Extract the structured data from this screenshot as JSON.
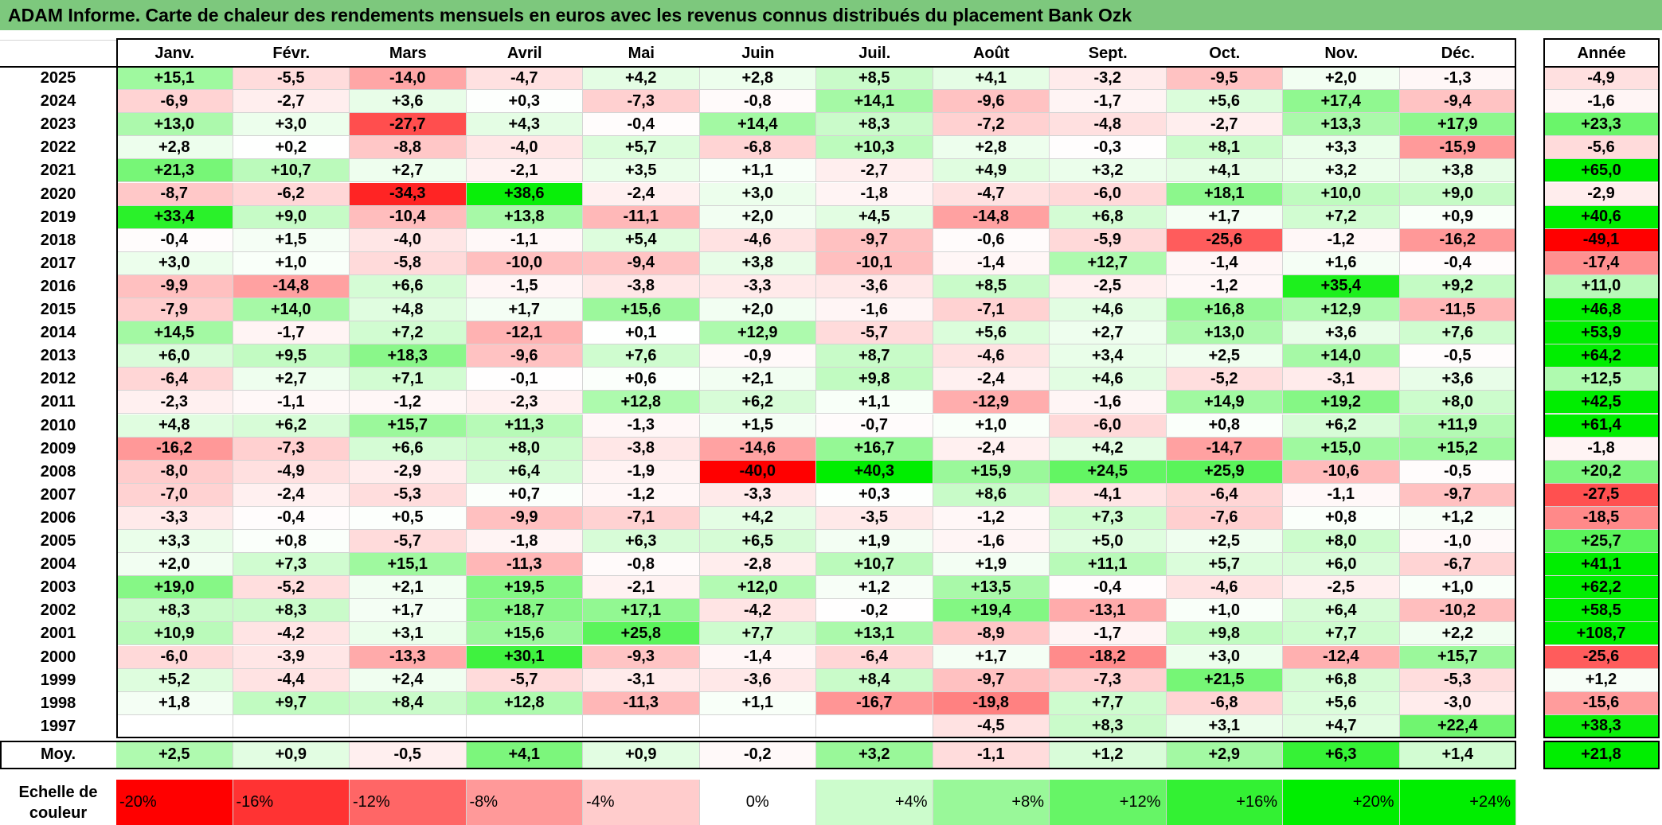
{
  "title": "ADAM Informe. Carte de chaleur des rendements mensuels en euros avec les revenus connus distribués du placement Bank Ozk",
  "chart_data": {
    "type": "heatmap",
    "title": "ADAM Informe. Carte de chaleur des rendements mensuels en euros avec les revenus connus distribués du placement Bank Ozk",
    "months": [
      "Janv.",
      "Févr.",
      "Mars",
      "Avril",
      "Mai",
      "Juin",
      "Juil.",
      "Août",
      "Sept.",
      "Oct.",
      "Nov.",
      "Déc."
    ],
    "annual_header": "Année",
    "rows": [
      {
        "year": "2025",
        "values": [
          "+15,1",
          "-5,5",
          "-14,0",
          "-4,7",
          "+4,2",
          "+2,8",
          "+8,5",
          "+4,1",
          "-3,2",
          "-9,5",
          "+2,0",
          "-1,3"
        ],
        "annual": "-4,9"
      },
      {
        "year": "2024",
        "values": [
          "-6,9",
          "-2,7",
          "+3,6",
          "+0,3",
          "-7,3",
          "-0,8",
          "+14,1",
          "-9,6",
          "-1,7",
          "+5,6",
          "+17,4",
          "-9,4"
        ],
        "annual": "-1,6"
      },
      {
        "year": "2023",
        "values": [
          "+13,0",
          "+3,0",
          "-27,7",
          "+4,3",
          "-0,4",
          "+14,4",
          "+8,3",
          "-7,2",
          "-4,8",
          "-2,7",
          "+13,3",
          "+17,9"
        ],
        "annual": "+23,3"
      },
      {
        "year": "2022",
        "values": [
          "+2,8",
          "+0,2",
          "-8,8",
          "-4,0",
          "+5,7",
          "-6,8",
          "+10,3",
          "+2,8",
          "-0,3",
          "+8,1",
          "+3,3",
          "-15,9"
        ],
        "annual": "-5,6"
      },
      {
        "year": "2021",
        "values": [
          "+21,3",
          "+10,7",
          "+2,7",
          "-2,1",
          "+3,5",
          "+1,1",
          "-2,7",
          "+4,9",
          "+3,2",
          "+4,1",
          "+3,2",
          "+3,8"
        ],
        "annual": "+65,0"
      },
      {
        "year": "2020",
        "values": [
          "-8,7",
          "-6,2",
          "-34,3",
          "+38,6",
          "-2,4",
          "+3,0",
          "-1,8",
          "-4,7",
          "-6,0",
          "+18,1",
          "+10,0",
          "+9,0"
        ],
        "annual": "-2,9"
      },
      {
        "year": "2019",
        "values": [
          "+33,4",
          "+9,0",
          "-10,4",
          "+13,8",
          "-11,1",
          "+2,0",
          "+4,5",
          "-14,8",
          "+6,8",
          "+1,7",
          "+7,2",
          "+0,9"
        ],
        "annual": "+40,6"
      },
      {
        "year": "2018",
        "values": [
          "-0,4",
          "+1,5",
          "-4,0",
          "-1,1",
          "+5,4",
          "-4,6",
          "-9,7",
          "-0,6",
          "-5,9",
          "-25,6",
          "-1,2",
          "-16,2"
        ],
        "annual": "-49,1"
      },
      {
        "year": "2017",
        "values": [
          "+3,0",
          "+1,0",
          "-5,8",
          "-10,0",
          "-9,4",
          "+3,8",
          "-10,1",
          "-1,4",
          "+12,7",
          "-1,4",
          "+1,6",
          "-0,4"
        ],
        "annual": "-17,4"
      },
      {
        "year": "2016",
        "values": [
          "-9,9",
          "-14,8",
          "+6,6",
          "-1,5",
          "-3,8",
          "-3,3",
          "-3,6",
          "+8,5",
          "-2,5",
          "-1,2",
          "+35,4",
          "+9,2"
        ],
        "annual": "+11,0"
      },
      {
        "year": "2015",
        "values": [
          "-7,9",
          "+14,0",
          "+4,8",
          "+1,7",
          "+15,6",
          "+2,0",
          "-1,6",
          "-7,1",
          "+4,6",
          "+16,8",
          "+12,9",
          "-11,5"
        ],
        "annual": "+46,8"
      },
      {
        "year": "2014",
        "values": [
          "+14,5",
          "-1,7",
          "+7,2",
          "-12,1",
          "+0,1",
          "+12,9",
          "-5,7",
          "+5,6",
          "+2,7",
          "+13,0",
          "+3,6",
          "+7,6"
        ],
        "annual": "+53,9"
      },
      {
        "year": "2013",
        "values": [
          "+6,0",
          "+9,5",
          "+18,3",
          "-9,6",
          "+7,6",
          "-0,9",
          "+8,7",
          "-4,6",
          "+3,4",
          "+2,5",
          "+14,0",
          "-0,5"
        ],
        "annual": "+64,2"
      },
      {
        "year": "2012",
        "values": [
          "-6,4",
          "+2,7",
          "+7,1",
          "-0,1",
          "+0,6",
          "+2,1",
          "+9,8",
          "-2,4",
          "+4,6",
          "-5,2",
          "-3,1",
          "+3,6"
        ],
        "annual": "+12,5"
      },
      {
        "year": "2011",
        "values": [
          "-2,3",
          "-1,1",
          "-1,2",
          "-2,3",
          "+12,8",
          "+6,2",
          "+1,1",
          "-12,9",
          "-1,6",
          "+14,9",
          "+19,2",
          "+8,0"
        ],
        "annual": "+42,5"
      },
      {
        "year": "2010",
        "values": [
          "+4,8",
          "+6,2",
          "+15,7",
          "+11,3",
          "-1,3",
          "+1,5",
          "-0,7",
          "+1,0",
          "-6,0",
          "+0,8",
          "+6,2",
          "+11,9"
        ],
        "annual": "+61,4"
      },
      {
        "year": "2009",
        "values": [
          "-16,2",
          "-7,3",
          "+6,6",
          "+8,0",
          "-3,8",
          "-14,6",
          "+16,7",
          "-2,4",
          "+4,2",
          "-14,7",
          "+15,0",
          "+15,2"
        ],
        "annual": "-1,8"
      },
      {
        "year": "2008",
        "values": [
          "-8,0",
          "-4,9",
          "-2,9",
          "+6,4",
          "-1,9",
          "-40,0",
          "+40,3",
          "+15,9",
          "+24,5",
          "+25,9",
          "-10,6",
          "-0,5"
        ],
        "annual": "+20,2"
      },
      {
        "year": "2007",
        "values": [
          "-7,0",
          "-2,4",
          "-5,3",
          "+0,7",
          "-1,2",
          "-3,3",
          "+0,3",
          "+8,6",
          "-4,1",
          "-6,4",
          "-1,1",
          "-9,7"
        ],
        "annual": "-27,5"
      },
      {
        "year": "2006",
        "values": [
          "-3,3",
          "-0,4",
          "+0,5",
          "-9,9",
          "-7,1",
          "+4,2",
          "-3,5",
          "-1,2",
          "+7,3",
          "-7,6",
          "+0,8",
          "+1,2"
        ],
        "annual": "-18,5"
      },
      {
        "year": "2005",
        "values": [
          "+3,3",
          "+0,8",
          "-5,7",
          "-1,8",
          "+6,3",
          "+6,5",
          "+1,9",
          "-1,6",
          "+5,0",
          "+2,5",
          "+8,0",
          "-1,0"
        ],
        "annual": "+25,7"
      },
      {
        "year": "2004",
        "values": [
          "+2,0",
          "+7,3",
          "+15,1",
          "-11,3",
          "-0,8",
          "-2,8",
          "+10,7",
          "+1,9",
          "+11,1",
          "+5,7",
          "+6,0",
          "-6,7"
        ],
        "annual": "+41,1"
      },
      {
        "year": "2003",
        "values": [
          "+19,0",
          "-5,2",
          "+2,1",
          "+19,5",
          "-2,1",
          "+12,0",
          "+1,2",
          "+13,5",
          "-0,4",
          "-4,6",
          "-2,5",
          "+1,0"
        ],
        "annual": "+62,2"
      },
      {
        "year": "2002",
        "values": [
          "+8,3",
          "+8,3",
          "+1,7",
          "+18,7",
          "+17,1",
          "-4,2",
          "-0,2",
          "+19,4",
          "-13,1",
          "+1,0",
          "+6,4",
          "-10,2"
        ],
        "annual": "+58,5"
      },
      {
        "year": "2001",
        "values": [
          "+10,9",
          "-4,2",
          "+3,1",
          "+15,6",
          "+25,8",
          "+7,7",
          "+13,1",
          "-8,9",
          "-1,7",
          "+9,8",
          "+7,7",
          "+2,2"
        ],
        "annual": "+108,7"
      },
      {
        "year": "2000",
        "values": [
          "-6,0",
          "-3,9",
          "-13,3",
          "+30,1",
          "-9,3",
          "-1,4",
          "-6,4",
          "+1,7",
          "-18,2",
          "+3,0",
          "-12,4",
          "+15,7"
        ],
        "annual": "-25,6"
      },
      {
        "year": "1999",
        "values": [
          "+5,2",
          "-4,4",
          "+2,4",
          "-5,7",
          "-3,1",
          "-3,6",
          "+8,4",
          "-9,7",
          "-7,3",
          "+21,5",
          "+6,8",
          "-5,3"
        ],
        "annual": "+1,2"
      },
      {
        "year": "1998",
        "values": [
          "+1,8",
          "+9,7",
          "+8,4",
          "+12,8",
          "-11,3",
          "+1,1",
          "-16,7",
          "-19,8",
          "+7,7",
          "-6,8",
          "+5,6",
          "-3,0"
        ],
        "annual": "-15,6"
      },
      {
        "year": "1997",
        "values": [
          "",
          "",
          "",
          "",
          "",
          "",
          "",
          "-4,5",
          "+8,3",
          "+3,1",
          "+4,7",
          "+22,4"
        ],
        "annual": "+38,3"
      }
    ],
    "average": {
      "label": "Moy.",
      "values": [
        "+2,5",
        "+0,9",
        "-0,5",
        "+4,1",
        "+0,9",
        "-0,2",
        "+3,2",
        "-1,1",
        "+1,2",
        "+2,9",
        "+6,3",
        "+1,4"
      ],
      "annual": "+21,8"
    },
    "color_scale": {
      "label_line1": "Echelle de",
      "label_line2": "couleur",
      "stops": [
        "-20%",
        "-16%",
        "-12%",
        "-8%",
        "-4%",
        "0%",
        "+4%",
        "+8%",
        "+12%",
        "+16%",
        "+20%",
        "+24%"
      ]
    },
    "colors": {
      "negative": "#ff0000",
      "neutral": "#ffffff",
      "positive": "#00ee00",
      "title_bg": "#7dc87d"
    }
  }
}
